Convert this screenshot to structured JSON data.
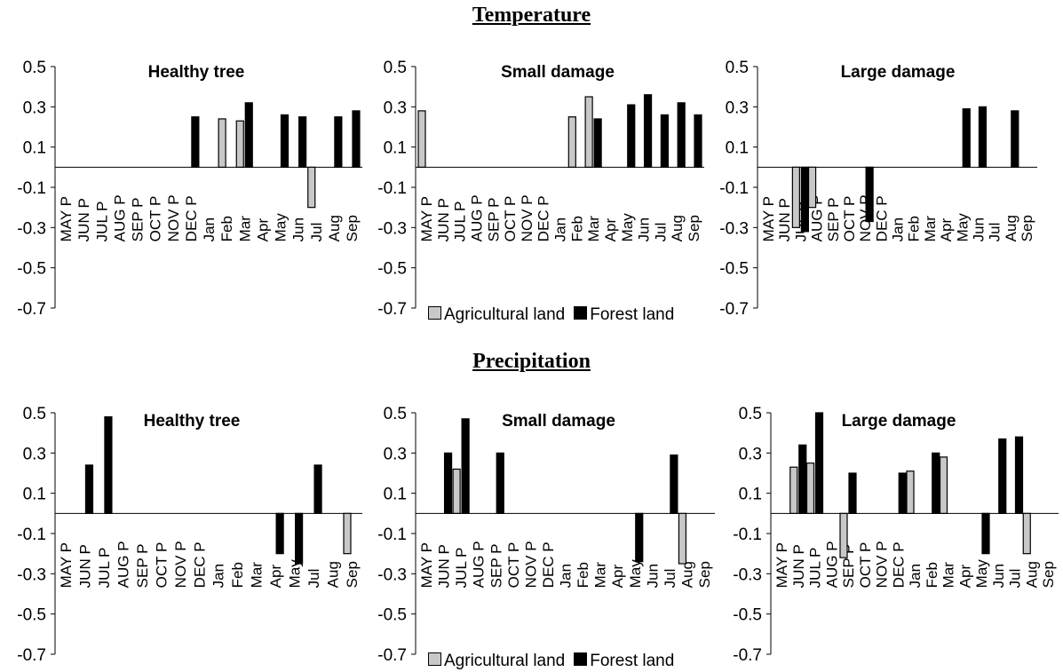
{
  "sections": {
    "temperature": "Temperature",
    "precipitation": "Precipitation"
  },
  "legend": {
    "agricultural": "Agricultural land",
    "forest": "Forest land",
    "colors": {
      "agricultural": "#c8c8c8",
      "forest": "#000000"
    }
  },
  "chart_data": [
    {
      "type": "bar",
      "section": "Temperature",
      "title": "Healthy tree",
      "categories": [
        "MAY P",
        "JUN P",
        "JUL P",
        "AUG P",
        "SEP P",
        "OCT P",
        "NOV P",
        "DEC P",
        "Jan",
        "Feb",
        "Mar",
        "Apr",
        "May",
        "Jun",
        "Jul",
        "Aug",
        "Sep"
      ],
      "ylim": [
        -0.7,
        0.5
      ],
      "yticks": [
        "0.5",
        "0.3",
        "0.1",
        "-0.1",
        "-0.3",
        "-0.5",
        "-0.7"
      ],
      "series": [
        {
          "name": "Agricultural land",
          "values": [
            null,
            null,
            null,
            null,
            null,
            null,
            null,
            null,
            null,
            0.24,
            0.23,
            null,
            null,
            null,
            -0.2,
            null,
            null
          ]
        },
        {
          "name": "Forest land",
          "values": [
            null,
            null,
            null,
            null,
            null,
            null,
            null,
            0.25,
            null,
            null,
            0.32,
            null,
            0.26,
            0.25,
            null,
            0.25,
            0.28
          ]
        }
      ]
    },
    {
      "type": "bar",
      "section": "Temperature",
      "title": "Small damage",
      "categories": [
        "MAY P",
        "JUN P",
        "JUL P",
        "AUG P",
        "SEP P",
        "OCT P",
        "NOV P",
        "DEC P",
        "Jan",
        "Feb",
        "Mar",
        "Apr",
        "May",
        "Jun",
        "Jul",
        "Aug",
        "Sep"
      ],
      "ylim": [
        -0.7,
        0.5
      ],
      "yticks": [
        "0.5",
        "0.3",
        "0.1",
        "-0.1",
        "-0.3",
        "-0.5",
        "-0.7"
      ],
      "series": [
        {
          "name": "Agricultural land",
          "values": [
            0.28,
            null,
            null,
            null,
            null,
            null,
            null,
            null,
            null,
            0.25,
            0.35,
            null,
            null,
            null,
            null,
            null,
            null
          ]
        },
        {
          "name": "Forest land",
          "values": [
            null,
            null,
            null,
            null,
            null,
            null,
            null,
            null,
            null,
            null,
            0.24,
            null,
            0.31,
            0.36,
            0.26,
            0.32,
            0.26
          ]
        }
      ]
    },
    {
      "type": "bar",
      "section": "Temperature",
      "title": "Large damage",
      "categories": [
        "MAY P",
        "JUN P",
        "JUL P",
        "AUG P",
        "SEP P",
        "OCT P",
        "NOV P",
        "DEC P",
        "Jan",
        "Feb",
        "Mar",
        "Apr",
        "May",
        "Jun",
        "Jul",
        "Aug",
        "Sep"
      ],
      "ylim": [
        -0.7,
        0.5
      ],
      "yticks": [
        "0.5",
        "0.3",
        "0.1",
        "-0.1",
        "-0.3",
        "-0.5",
        "-0.7"
      ],
      "series": [
        {
          "name": "Agricultural land",
          "values": [
            null,
            null,
            -0.3,
            -0.2,
            null,
            null,
            null,
            null,
            null,
            null,
            null,
            null,
            null,
            null,
            null,
            null,
            null
          ]
        },
        {
          "name": "Forest land",
          "values": [
            null,
            null,
            -0.32,
            null,
            null,
            null,
            -0.27,
            null,
            null,
            null,
            null,
            null,
            0.29,
            0.3,
            null,
            0.28,
            null
          ]
        }
      ]
    },
    {
      "type": "bar",
      "section": "Precipitation",
      "title": "Healthy tree",
      "categories": [
        "MAY P",
        "JUN P",
        "JUL P",
        "AUG P",
        "SEP P",
        "OCT P",
        "NOV P",
        "DEC P",
        "Jan",
        "Feb",
        "Mar",
        "Apr",
        "May",
        "Jul",
        "Aug",
        "Sep"
      ],
      "ylim": [
        -0.7,
        0.5
      ],
      "yticks": [
        "0.5",
        "0.3",
        "0.1",
        "-0.1",
        "-0.3",
        "-0.5",
        "-0.7"
      ],
      "series": [
        {
          "name": "Agricultural land",
          "values": [
            null,
            null,
            null,
            null,
            null,
            null,
            null,
            null,
            null,
            null,
            null,
            null,
            null,
            null,
            null,
            -0.2
          ]
        },
        {
          "name": "Forest land",
          "values": [
            null,
            0.24,
            0.48,
            null,
            null,
            null,
            null,
            null,
            null,
            null,
            null,
            -0.2,
            -0.25,
            0.24,
            null,
            null
          ]
        }
      ]
    },
    {
      "type": "bar",
      "section": "Precipitation",
      "title": "Small damage",
      "categories": [
        "MAY P",
        "JUN P",
        "JUL P",
        "AUG P",
        "SEP P",
        "OCT P",
        "NOV P",
        "DEC P",
        "Jan",
        "Feb",
        "Mar",
        "Apr",
        "May",
        "Jun",
        "Jul",
        "Aug",
        "Sep"
      ],
      "ylim": [
        -0.7,
        0.5
      ],
      "yticks": [
        "0.5",
        "0.3",
        "0.1",
        "-0.1",
        "-0.3",
        "-0.5",
        "-0.7"
      ],
      "series": [
        {
          "name": "Agricultural land",
          "values": [
            null,
            null,
            0.22,
            null,
            null,
            null,
            null,
            null,
            null,
            null,
            null,
            null,
            null,
            null,
            null,
            -0.25,
            null
          ]
        },
        {
          "name": "Forest land",
          "values": [
            null,
            0.3,
            0.47,
            null,
            0.3,
            null,
            null,
            null,
            null,
            null,
            null,
            null,
            -0.24,
            null,
            0.29,
            null,
            null
          ]
        }
      ]
    },
    {
      "type": "bar",
      "section": "Precipitation",
      "title": "Large damage",
      "categories": [
        "MAY P",
        "JUN P",
        "JUL P",
        "AUG P",
        "SEP P",
        "OCT P",
        "NOV P",
        "DEC P",
        "Jan",
        "Feb",
        "Mar",
        "Apr",
        "May",
        "Jun",
        "Jul",
        "Aug",
        "Sep"
      ],
      "ylim": [
        -0.7,
        0.5
      ],
      "yticks": [
        "0.5",
        "0.3",
        "0.1",
        "-0.1",
        "-0.3",
        "-0.5",
        "-0.7"
      ],
      "series": [
        {
          "name": "Agricultural land",
          "values": [
            null,
            0.23,
            0.25,
            null,
            -0.22,
            null,
            null,
            null,
            0.21,
            null,
            0.28,
            null,
            null,
            null,
            null,
            -0.2,
            null
          ]
        },
        {
          "name": "Forest land",
          "values": [
            null,
            0.34,
            0.5,
            null,
            0.2,
            null,
            null,
            0.2,
            null,
            0.3,
            null,
            null,
            -0.2,
            0.37,
            0.38,
            null,
            null
          ]
        }
      ]
    }
  ]
}
